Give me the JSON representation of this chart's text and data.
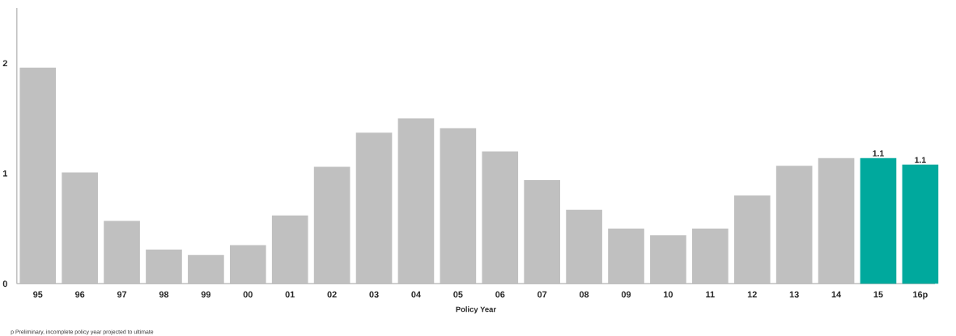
{
  "chart_data": {
    "type": "bar",
    "xlabel": "Policy Year",
    "categories": [
      "95",
      "96",
      "97",
      "98",
      "99",
      "00",
      "01",
      "02",
      "03",
      "04",
      "05",
      "06",
      "07",
      "08",
      "09",
      "10",
      "11",
      "12",
      "13",
      "14",
      "15",
      "16p"
    ],
    "values": [
      1.96,
      1.01,
      0.57,
      0.31,
      0.26,
      0.35,
      0.62,
      1.06,
      1.37,
      1.5,
      1.41,
      1.2,
      0.94,
      0.67,
      0.5,
      0.44,
      0.5,
      0.8,
      1.07,
      1.14,
      1.14,
      1.08
    ],
    "colors": [
      "#c0c0c0",
      "#c0c0c0",
      "#c0c0c0",
      "#c0c0c0",
      "#c0c0c0",
      "#c0c0c0",
      "#c0c0c0",
      "#c0c0c0",
      "#c0c0c0",
      "#c0c0c0",
      "#c0c0c0",
      "#c0c0c0",
      "#c0c0c0",
      "#c0c0c0",
      "#c0c0c0",
      "#c0c0c0",
      "#c0c0c0",
      "#c0c0c0",
      "#c0c0c0",
      "#c0c0c0",
      "#00a99d",
      "#00a99d"
    ],
    "value_labels": [
      null,
      null,
      null,
      null,
      null,
      null,
      null,
      null,
      null,
      null,
      null,
      null,
      null,
      null,
      null,
      null,
      null,
      null,
      null,
      null,
      "1.1",
      "1.1"
    ],
    "ylim": [
      0,
      2.5
    ],
    "yticks": [
      0,
      1,
      2
    ],
    "annotations": [
      "p Preliminary, incomplete policy year projected to ultimate"
    ]
  }
}
